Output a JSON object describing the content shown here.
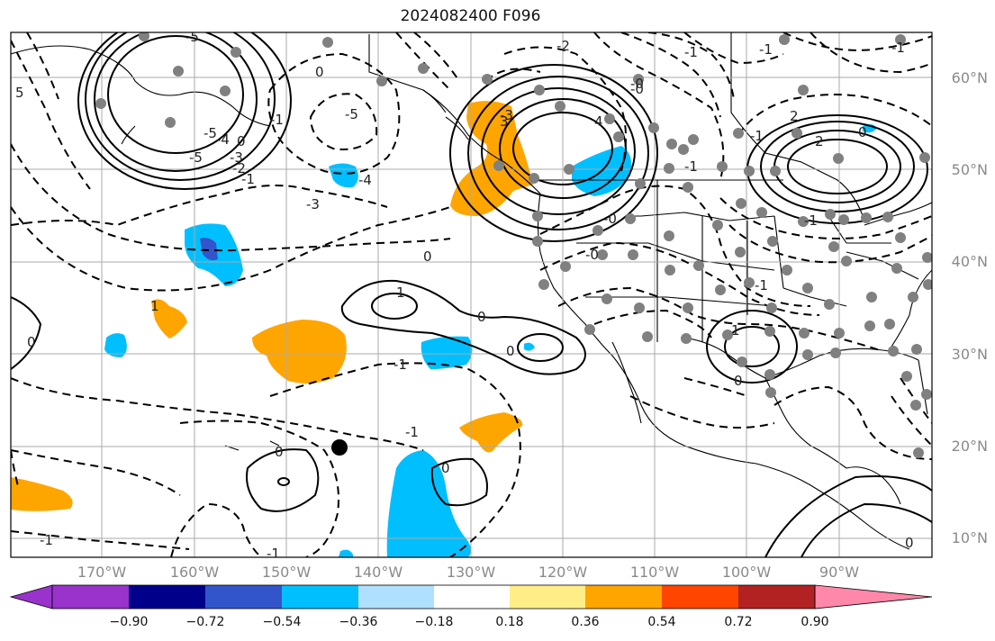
{
  "title": "2024082400 F096",
  "axes": {
    "lat_labels": [
      "60°N",
      "50°N",
      "40°N",
      "30°N",
      "20°N",
      "10°N"
    ],
    "lon_labels": [
      "170°W",
      "160°W",
      "150°W",
      "140°W",
      "130°W",
      "120°W",
      "110°W",
      "100°W",
      "90°W"
    ]
  },
  "colorbar": {
    "ticks": [
      "−0.90",
      "−0.72",
      "−0.54",
      "−0.36",
      "−0.18",
      "0.18",
      "0.36",
      "0.54",
      "0.72",
      "0.90"
    ],
    "colors": [
      "#9933cc",
      "#00008b",
      "#3355cc",
      "#00bfff",
      "#b0e0ff",
      "#ffffff",
      "#ffee88",
      "#ffa500",
      "#ff4500",
      "#b22222",
      "#ff88aa"
    ]
  },
  "contour_labels": [
    "-5",
    "-5",
    "-5",
    "-4",
    "-3",
    "-2",
    "-1",
    "0",
    "0",
    "-1",
    "5",
    "-5",
    "-3",
    "-4",
    "-3",
    "-2",
    "-0",
    "-1",
    "0",
    "0",
    "-1",
    "-1",
    "-1",
    "0",
    "0",
    "-1",
    "0",
    "0",
    "-1",
    "1",
    "1",
    "0",
    "-0",
    "-0",
    "0",
    "-1",
    "1",
    "3",
    "4",
    "2",
    "0",
    "-1",
    "-1",
    "2",
    "-1",
    "-1",
    "-0"
  ],
  "fill_colors": {
    "orange": "#ffa500",
    "cyan": "#00bfff",
    "blue": "#3355cc"
  }
}
